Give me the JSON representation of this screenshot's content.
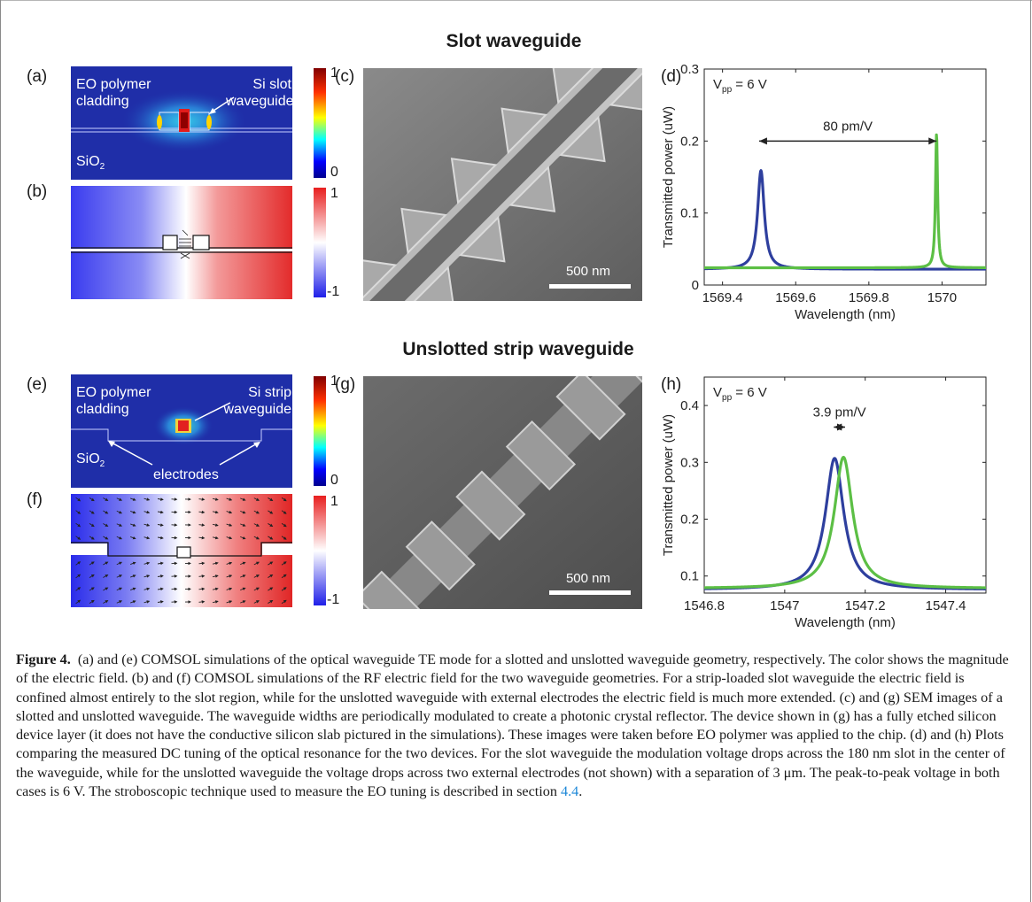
{
  "section_titles": {
    "slot": "Slot waveguide",
    "strip": "Unslotted strip waveguide"
  },
  "panel_labels": {
    "a": "(a)",
    "b": "(b)",
    "c": "(c)",
    "d": "(d)",
    "e": "(e)",
    "f": "(f)",
    "g": "(g)",
    "h": "(h)"
  },
  "panel_a": {
    "left_label_1": "EO polymer",
    "left_label_2": "cladding",
    "right_label_1": "Si slot",
    "right_label_2": "waveguide",
    "substrate_label": "SiO",
    "substrate_sub": "2",
    "cbar_max": "1",
    "cbar_min": "0"
  },
  "panel_b": {
    "cbar_max": "1",
    "cbar_min": "-1"
  },
  "panel_c": {
    "scalebar": "500 nm"
  },
  "panel_e": {
    "left_label_1": "EO polymer",
    "left_label_2": "cladding",
    "right_label_1": "Si strip",
    "right_label_2": "waveguide",
    "substrate_label": "SiO",
    "substrate_sub": "2",
    "electrodes_label": "electrodes",
    "cbar_max": "1",
    "cbar_min": "0"
  },
  "panel_f": {
    "cbar_max": "1",
    "cbar_min": "-1"
  },
  "panel_g": {
    "scalebar": "500 nm"
  },
  "chart_data": [
    {
      "panel": "d",
      "type": "line",
      "xlabel": "Wavelength (nm)",
      "ylabel": "Transmitted power (uW)",
      "xlim": [
        1569.35,
        1570.12
      ],
      "ylim": [
        0,
        0.3
      ],
      "xticks": [
        "1569.4",
        "1569.6",
        "1569.8",
        "1570"
      ],
      "xtick_values": [
        1569.4,
        1569.6,
        1569.8,
        1570.0
      ],
      "yticks": [
        "0",
        "0.1",
        "0.2",
        "0.3"
      ],
      "ytick_values": [
        0,
        0.1,
        0.2,
        0.3
      ],
      "annotation_vpp": "V",
      "annotation_vpp_sub": "pp",
      "annotation_vpp_value": " = 6 V",
      "annotation_shift": "80 pm/V",
      "arrow_x": [
        1569.5,
        1569.985
      ],
      "arrow_y": 0.2,
      "series": [
        {
          "color": "#2e3f9e",
          "baseline": 0.022,
          "peak_x": 1569.505,
          "peak_y": 0.159,
          "width": 0.022
        },
        {
          "color": "#5cbf45",
          "baseline": 0.024,
          "peak_x": 1569.985,
          "peak_y": 0.21,
          "width": 0.007
        }
      ]
    },
    {
      "panel": "h",
      "type": "line",
      "xlabel": "Wavelength (nm)",
      "ylabel": "Transmitted power (uW)",
      "xlim": [
        1546.8,
        1547.5
      ],
      "ylim": [
        0.07,
        0.45
      ],
      "xticks": [
        "1546.8",
        "1547",
        "1547.2",
        "1547.4"
      ],
      "xtick_values": [
        1546.8,
        1547.0,
        1547.2,
        1547.4
      ],
      "yticks": [
        "0.1",
        "0.2",
        "0.3",
        "0.4"
      ],
      "ytick_values": [
        0.1,
        0.2,
        0.3,
        0.4
      ],
      "annotation_vpp": "V",
      "annotation_vpp_sub": "pp",
      "annotation_vpp_value": " = 6 V",
      "annotation_shift": "3.9 pm/V",
      "arrow_x": [
        1547.122,
        1547.15
      ],
      "arrow_y": 0.362,
      "series": [
        {
          "color": "#2e3f9e",
          "baseline": 0.076,
          "peak_x": 1547.124,
          "peak_y": 0.307,
          "width": 0.055
        },
        {
          "color": "#5cbf45",
          "baseline": 0.078,
          "peak_x": 1547.146,
          "peak_y": 0.309,
          "width": 0.055
        }
      ]
    }
  ],
  "caption": {
    "figure_label": "Figure 4.",
    "text": "(a) and (e) COMSOL simulations of the optical waveguide TE mode for a slotted and unslotted waveguide geometry, respectively. The color shows the magnitude of the electric field. (b) and (f) COMSOL simulations of the RF electric field for the two waveguide geometries. For a strip-loaded slot waveguide the electric field is confined almost entirely to the slot region, while for the unslotted waveguide with external electrodes the electric field is much more extended. (c) and (g) SEM images of a slotted and unslotted waveguide. The waveguide widths are periodically modulated to create a photonic crystal reflector. The device shown in (g) has a fully etched silicon device layer (it does not have the conductive silicon slab pictured in the simulations). These images were taken before EO polymer was applied to the chip. (d) and (h) Plots comparing the measured DC tuning of the optical resonance for the two devices. For the slot waveguide the modulation voltage drops across the 180 nm slot in the center of the waveguide, while for the unslotted waveguide the voltage drops across two external electrodes (not shown) with a separation of 3 μm. The peak-to-peak voltage in both cases is 6 V. The stroboscopic technique used to measure the EO tuning is described in section",
    "link": "4.4",
    "tail": "."
  }
}
